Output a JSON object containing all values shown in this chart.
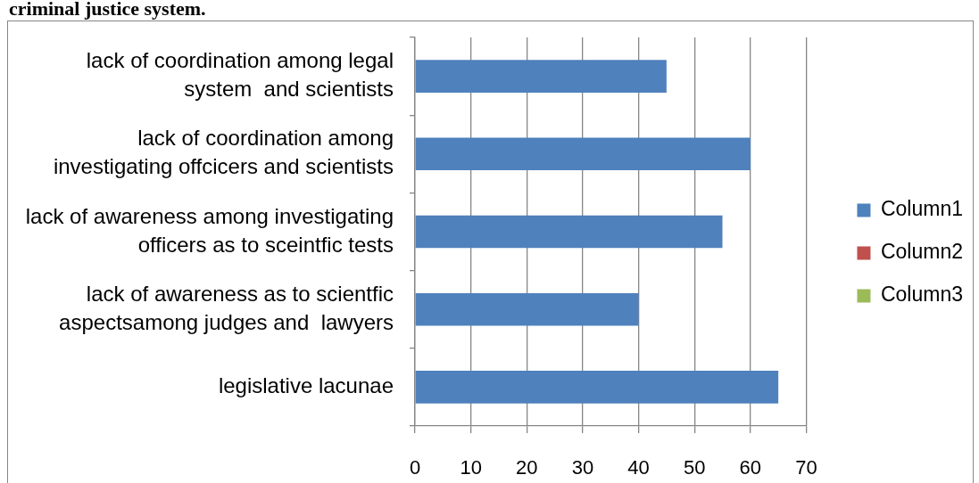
{
  "chart_data": {
    "type": "bar",
    "orientation": "horizontal",
    "title": "criminal justice system.",
    "categories": [
      "lack of coordination among legal\nsystem  and scientists",
      "lack of coordination among\ninvestigating offcicers and scientists",
      "lack of awareness among investigating\nofficers as to sceintfic tests",
      "lack of awareness as to scientfic\naspectsamong judges and  lawyers",
      "legislative lacunae"
    ],
    "series": [
      {
        "name": "Column1",
        "color": "#4f81bd",
        "values": [
          45,
          60,
          55,
          40,
          65
        ]
      },
      {
        "name": "Column2",
        "color": "#c0504d",
        "values": [
          null,
          null,
          null,
          null,
          null
        ]
      },
      {
        "name": "Column3",
        "color": "#9bbb59",
        "values": [
          null,
          null,
          null,
          null,
          null
        ]
      }
    ],
    "xlim": [
      0,
      70
    ],
    "xticks": [
      0,
      10,
      20,
      30,
      40,
      50,
      60,
      70
    ],
    "grid": "x",
    "legend": "right"
  }
}
